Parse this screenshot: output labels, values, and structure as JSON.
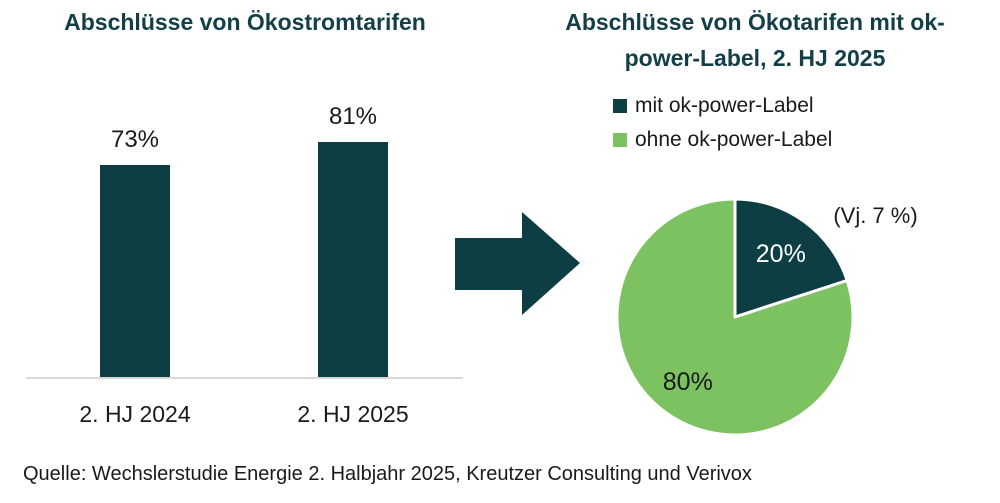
{
  "colors": {
    "dark_teal": "#0C3E44",
    "green": "#7CC261",
    "title_teal": "#123F48",
    "text_dark": "#1A1A1A",
    "axis_gray": "#D9D9D9"
  },
  "chart_data": [
    {
      "type": "bar",
      "title": "Abschlüsse von Ökostromtarifen",
      "categories": [
        "2. HJ 2024",
        "2. HJ 2025"
      ],
      "values": [
        73,
        81
      ],
      "value_labels": [
        "73%",
        "81%"
      ],
      "ylim": [
        0,
        100
      ],
      "bar_color": "#0C3E44",
      "grid": false,
      "axis_labels_visible": false
    },
    {
      "type": "pie",
      "title": "Abschlüsse von Ökotarifen mit ok-power-Label, 2. HJ 2025",
      "title_lines": [
        "Abschlüsse von Ökotarifen mit ok-",
        "power-Label, 2. HJ 2025"
      ],
      "labels": [
        "mit ok-power-Label",
        "ohne ok-power-Label"
      ],
      "values": [
        20,
        80
      ],
      "slice_labels": [
        "20%",
        "80%"
      ],
      "slice_label_colors": [
        "#FFFFFF",
        "#1A1A1A"
      ],
      "colors": [
        "#0C3E44",
        "#7CC261"
      ],
      "annotation": "(Vj. 7 %)",
      "legend_position": "top",
      "start_angle_deg": 0,
      "direction": "clockwise"
    }
  ],
  "source_note": "Quelle: Wechslerstudie Energie 2. Halbjahr 2025, Kreutzer Consulting und Verivox"
}
